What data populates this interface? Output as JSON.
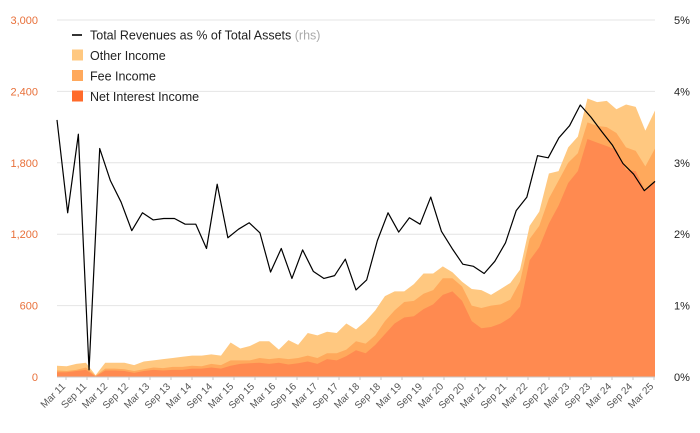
{
  "chart_data": {
    "type": "area",
    "title": "",
    "xlabel": "",
    "ylabel": "",
    "ylim": [
      0,
      3000
    ],
    "y2lim": [
      0,
      5
    ],
    "yticks_left": [
      "0",
      "600",
      "1,200",
      "1,800",
      "2,400",
      "3,000"
    ],
    "yticks_right": [
      "0%",
      "1%",
      "2%",
      "3%",
      "4%",
      "5%"
    ],
    "x_tick_labels": [
      "Mar 11",
      "Sep 11",
      "Mar 12",
      "Sep 12",
      "Mar 13",
      "Sep 13",
      "Mar 14",
      "Sep 14",
      "Mar 15",
      "Sep 15",
      "Mar 16",
      "Sep 16",
      "Mar 17",
      "Sep 17",
      "Mar 18",
      "Sep 18",
      "Mar 19",
      "Sep 19",
      "Mar 20",
      "Sep 20",
      "Mar 21",
      "Sep 21",
      "Mar 22",
      "Sep 22",
      "Mar 23",
      "Sep 23",
      "Mar 24",
      "Sep 24",
      "Mar 25"
    ],
    "grid": true,
    "legend_position": "top-left",
    "colors": {
      "net_interest": "#ff8a50",
      "fee": "#ffa95c",
      "other": "#ffc880",
      "ratio_line": "#000000",
      "left_axis": "#e8703a"
    },
    "legend": [
      {
        "label": "Total Revenues as % of Total Assets",
        "note": "(rhs)",
        "kind": "line",
        "color": "#000000"
      },
      {
        "label": "Other Income",
        "note": "",
        "kind": "area",
        "color": "#ffc880"
      },
      {
        "label": "Fee Income",
        "note": "",
        "kind": "area",
        "color": "#ffa95c"
      },
      {
        "label": "Net Interest Income",
        "note": "",
        "kind": "area",
        "color": "#ff6a2a"
      }
    ],
    "series": [
      {
        "name": "Net Interest Income",
        "axis": "left",
        "values": [
          40,
          40,
          50,
          60,
          5,
          55,
          55,
          50,
          35,
          50,
          60,
          55,
          60,
          60,
          70,
          70,
          80,
          70,
          95,
          110,
          115,
          120,
          110,
          120,
          105,
          115,
          130,
          110,
          150,
          140,
          175,
          225,
          200,
          270,
          360,
          450,
          500,
          510,
          570,
          610,
          690,
          720,
          640,
          470,
          410,
          420,
          450,
          500,
          590,
          980,
          1090,
          1290,
          1440,
          1630,
          1730,
          2000,
          1970,
          1940,
          1910,
          1740,
          1730,
          1560,
          1650
        ]
      },
      {
        "name": "Fee Income",
        "axis": "left",
        "values": [
          55,
          50,
          60,
          80,
          10,
          70,
          70,
          65,
          50,
          65,
          80,
          75,
          85,
          85,
          95,
          90,
          110,
          100,
          140,
          140,
          140,
          160,
          150,
          160,
          150,
          160,
          180,
          160,
          200,
          200,
          230,
          300,
          280,
          350,
          470,
          560,
          630,
          640,
          700,
          730,
          830,
          830,
          760,
          600,
          580,
          600,
          610,
          650,
          800,
          1160,
          1270,
          1500,
          1650,
          1800,
          1880,
          2140,
          2110,
          2100,
          2050,
          1930,
          1900,
          1770,
          1920
        ]
      },
      {
        "name": "Other Income",
        "axis": "left",
        "values": [
          95,
          90,
          110,
          120,
          15,
          120,
          120,
          120,
          100,
          130,
          140,
          150,
          160,
          170,
          180,
          180,
          190,
          180,
          290,
          240,
          260,
          300,
          300,
          230,
          310,
          270,
          370,
          350,
          380,
          370,
          450,
          400,
          470,
          560,
          680,
          720,
          720,
          780,
          870,
          870,
          930,
          880,
          800,
          740,
          730,
          690,
          740,
          790,
          900,
          1270,
          1390,
          1710,
          1730,
          1930,
          2020,
          2340,
          2310,
          2320,
          2250,
          2290,
          2270,
          2070,
          2240
        ]
      },
      {
        "name": "Total Revenues as % of Total Assets",
        "axis": "right",
        "values": [
          3.6,
          2.3,
          3.4,
          0.1,
          3.2,
          2.75,
          2.45,
          2.05,
          2.3,
          2.2,
          2.22,
          2.22,
          2.14,
          2.14,
          1.8,
          2.7,
          1.95,
          2.07,
          2.16,
          2.02,
          1.47,
          1.8,
          1.38,
          1.78,
          1.48,
          1.38,
          1.42,
          1.65,
          1.22,
          1.36,
          1.91,
          2.3,
          2.03,
          2.23,
          2.14,
          2.52,
          2.04,
          1.8,
          1.58,
          1.55,
          1.45,
          1.62,
          1.88,
          2.33,
          2.52,
          3.1,
          3.07,
          3.35,
          3.52,
          3.81,
          3.64,
          3.44,
          3.25,
          2.99,
          2.84,
          2.61,
          2.74
        ]
      }
    ]
  }
}
